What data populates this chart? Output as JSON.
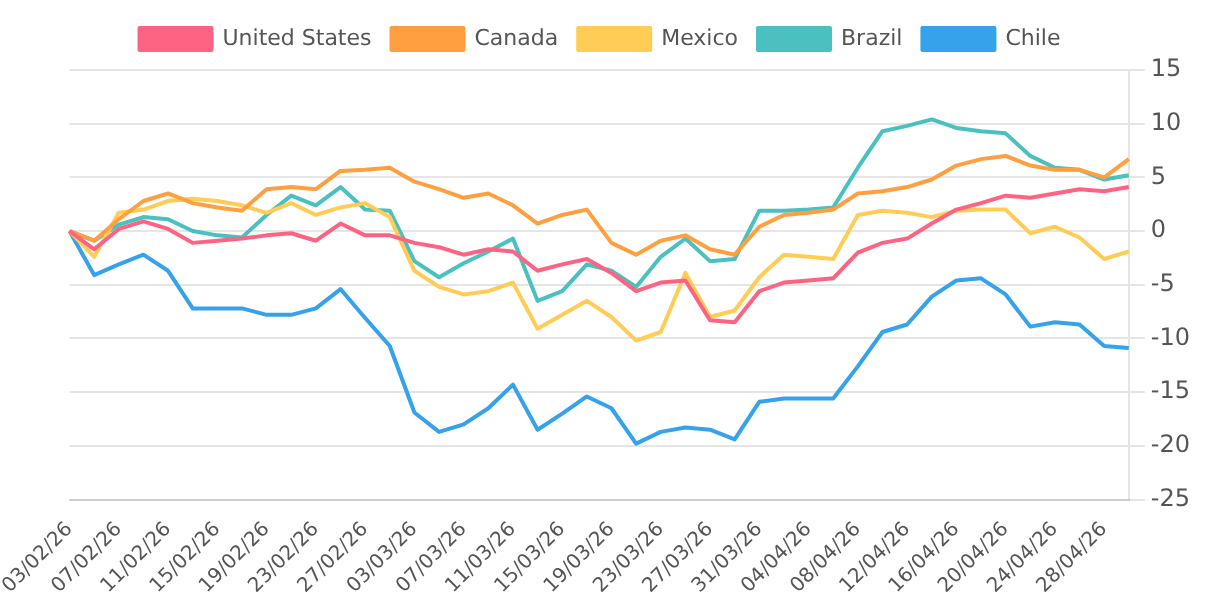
{
  "chart_data": {
    "type": "line",
    "categories": [
      "03/02/26",
      null,
      "07/02/26",
      null,
      "11/02/26",
      null,
      "15/02/26",
      null,
      "19/02/26",
      null,
      "23/02/26",
      null,
      "27/02/26",
      null,
      "03/03/26",
      null,
      "07/03/26",
      null,
      "11/03/26",
      null,
      "15/03/26",
      null,
      "19/03/26",
      null,
      "23/03/26",
      null,
      "27/03/26",
      null,
      "31/03/26",
      null,
      "04/04/26",
      null,
      "08/04/26",
      null,
      "12/04/26",
      null,
      "16/04/26",
      null,
      "20/04/26",
      null,
      "24/04/26",
      null,
      "28/04/26",
      null
    ],
    "series": [
      {
        "name": "United States",
        "color": "#ff6384",
        "values": [
          0,
          -1.7,
          0.2,
          0.9,
          0.2,
          -1.1,
          -0.9,
          -0.7,
          -0.4,
          -0.2,
          -0.9,
          0.7,
          -0.4,
          -0.4,
          -1.1,
          -1.5,
          -2.2,
          -1.7,
          -1.9,
          -3.7,
          -3.1,
          -2.6,
          -3.9,
          -5.6,
          -4.8,
          -4.6,
          -8.3,
          -8.5,
          -5.6,
          -4.8,
          -4.6,
          -4.4,
          -2.0,
          -1.1,
          -0.7,
          0.7,
          2.0,
          2.6,
          3.3,
          3.1,
          3.5,
          3.9,
          3.7,
          4.1
        ]
      },
      {
        "name": "Canada",
        "color": "#ff9f40",
        "values": [
          0,
          -0.9,
          1.1,
          2.8,
          3.5,
          2.6,
          2.2,
          1.9,
          3.9,
          4.1,
          3.9,
          5.6,
          5.7,
          5.9,
          4.6,
          3.9,
          3.1,
          3.5,
          2.4,
          0.7,
          1.5,
          2.0,
          -1.1,
          -2.2,
          -0.9,
          -0.4,
          -1.7,
          -2.2,
          0.4,
          1.5,
          1.7,
          2.0,
          3.5,
          3.7,
          4.1,
          4.8,
          6.1,
          6.7,
          7.0,
          6.1,
          5.7,
          5.7,
          5.0,
          6.7
        ]
      },
      {
        "name": "Mexico",
        "color": "#ffcd56",
        "values": [
          0,
          -2.4,
          1.7,
          2.0,
          2.8,
          3.0,
          2.8,
          2.4,
          1.7,
          2.6,
          1.5,
          2.2,
          2.6,
          1.3,
          -3.7,
          -5.2,
          -5.9,
          -5.6,
          -4.8,
          -9.1,
          -7.8,
          -6.5,
          -8.0,
          -10.2,
          -9.4,
          -3.9,
          -8.0,
          -7.4,
          -4.3,
          -2.2,
          -2.4,
          -2.6,
          1.5,
          1.9,
          1.7,
          1.3,
          1.9,
          2.0,
          2.0,
          -0.2,
          0.4,
          -0.6,
          -2.6,
          -1.9
        ]
      },
      {
        "name": "Brazil",
        "color": "#4bc0c0",
        "values": [
          0,
          -0.9,
          0.6,
          1.3,
          1.1,
          0,
          -0.4,
          -0.6,
          1.5,
          3.3,
          2.4,
          4.1,
          2.0,
          1.9,
          -2.8,
          -4.3,
          -3.0,
          -1.9,
          -0.7,
          -6.5,
          -5.6,
          -3.1,
          -3.7,
          -5.2,
          -2.4,
          -0.7,
          -2.8,
          -2.6,
          1.9,
          1.9,
          2.0,
          2.2,
          5.9,
          9.3,
          9.8,
          10.4,
          9.6,
          9.3,
          9.1,
          7.0,
          5.9,
          5.7,
          4.8,
          5.2
        ]
      },
      {
        "name": "Chile",
        "color": "#36a2eb",
        "values": [
          0,
          -4.1,
          -3.1,
          -2.2,
          -3.7,
          -7.2,
          -7.2,
          -7.2,
          -7.8,
          -7.8,
          -7.2,
          -5.4,
          -8.1,
          -10.7,
          -16.9,
          -18.7,
          -18,
          -16.5,
          -14.3,
          -18.5,
          -17,
          -15.4,
          -16.5,
          -19.8,
          -18.7,
          -18.3,
          -18.5,
          -19.4,
          -15.9,
          -15.6,
          -15.6,
          -15.6,
          -12.6,
          -9.4,
          -8.7,
          -6.1,
          -4.6,
          -4.4,
          -5.9,
          -8.9,
          -8.5,
          -8.7,
          -10.7,
          -10.9
        ]
      }
    ],
    "ylim": [
      -25,
      15
    ],
    "yticks": [
      -25,
      -20,
      -15,
      -10,
      -5,
      0,
      5,
      10,
      15
    ],
    "grid": "y",
    "legend": "top",
    "marker": "none",
    "line_style": "solid"
  }
}
